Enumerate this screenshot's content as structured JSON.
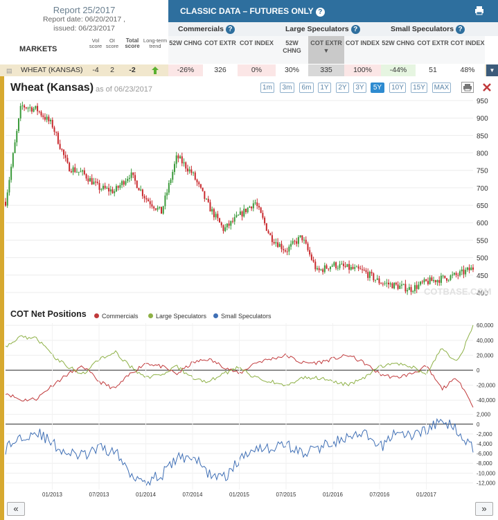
{
  "report": {
    "title": "Report 25/2017",
    "report_date": "Report date: 06/20/2017 ,",
    "issued": "issued: 06/23/2017"
  },
  "table": {
    "classic_title": "CLASSIC DATA – FUTURES ONLY",
    "markets_label": "MARKETS",
    "vol_score": "Vol score",
    "oi_score": "OI score",
    "total_score": "Total score",
    "long_term_trend": "Long-term trend",
    "groups": [
      "Commercials",
      "Large Speculators",
      "Small Speculators"
    ],
    "col_heads": [
      "52W CHNG",
      "COT EXTR",
      "COT INDEX",
      "52W CHNG",
      "COT EXTR",
      "COT INDEX",
      "52W CHNG",
      "COT EXTR",
      "COT INDEX"
    ],
    "row": {
      "market": "WHEAT (KANSAS)",
      "vol": "-4",
      "oi": "2",
      "total": "-2",
      "values": [
        "-26%",
        "326",
        "0%",
        "30%",
        "335",
        "100%",
        "-44%",
        "51",
        "48%"
      ]
    }
  },
  "chart": {
    "title": "Wheat (Kansas)",
    "as_of": "as of 06/23/2017",
    "ranges": [
      "1m",
      "3m",
      "6m",
      "1Y",
      "2Y",
      "3Y",
      "5Y",
      "10Y",
      "15Y",
      "MAX"
    ],
    "active_range": "5Y",
    "watermark": "COTBASE.COM",
    "cot_title": "COT Net Positions",
    "legend": [
      "Commercials",
      "Large Speculators",
      "Small Speculators"
    ],
    "colors": {
      "commercials": "#c0393b",
      "large": "#8db045",
      "small": "#3f6fb5",
      "accent": "#2e6f9e",
      "bar_gold": "#e0b33a"
    }
  },
  "chart_data": [
    {
      "type": "line",
      "series_style": "candlestick",
      "title": "Wheat (Kansas)",
      "yticks": [
        400,
        450,
        500,
        550,
        600,
        650,
        700,
        750,
        800,
        850,
        900,
        950
      ],
      "ylim": [
        380,
        960
      ],
      "x": [
        "2012-07",
        "2012-09",
        "2012-11",
        "2013-01",
        "2013-03",
        "2013-05",
        "2013-07",
        "2013-09",
        "2013-11",
        "2014-01",
        "2014-03",
        "2014-05",
        "2014-07",
        "2014-09",
        "2014-11",
        "2015-01",
        "2015-03",
        "2015-05",
        "2015-07",
        "2015-09",
        "2015-11",
        "2016-01",
        "2016-03",
        "2016-05",
        "2016-07",
        "2016-09",
        "2016-11",
        "2017-01",
        "2017-03",
        "2017-05",
        "2017-06"
      ],
      "series": [
        {
          "values": [
            660,
            935,
            925,
            880,
            760,
            740,
            700,
            690,
            740,
            670,
            630,
            790,
            740,
            650,
            580,
            620,
            660,
            560,
            520,
            560,
            460,
            480,
            470,
            460,
            430,
            420,
            410,
            430,
            440,
            450,
            470
          ]
        }
      ]
    },
    {
      "type": "line",
      "title": "COT Net Positions",
      "yticks": [
        -40000,
        -20000,
        0,
        20000,
        40000,
        60000
      ],
      "ylim": [
        -50000,
        63000
      ],
      "x": [
        "2012-07",
        "2012-09",
        "2012-11",
        "2013-01",
        "2013-03",
        "2013-05",
        "2013-07",
        "2013-09",
        "2013-11",
        "2014-01",
        "2014-03",
        "2014-05",
        "2014-07",
        "2014-09",
        "2014-11",
        "2015-01",
        "2015-03",
        "2015-05",
        "2015-07",
        "2015-09",
        "2015-11",
        "2016-01",
        "2016-03",
        "2016-05",
        "2016-07",
        "2016-09",
        "2016-11",
        "2017-01",
        "2017-03",
        "2017-05",
        "2017-06"
      ],
      "series": [
        {
          "name": "Commercials",
          "values": [
            -30000,
            -40000,
            -38000,
            -20000,
            -5000,
            5000,
            -15000,
            -25000,
            -5000,
            10000,
            5000,
            -5000,
            10000,
            15000,
            5000,
            -5000,
            10000,
            15000,
            20000,
            10000,
            10000,
            15000,
            20000,
            10000,
            -5000,
            -10000,
            -5000,
            5000,
            -25000,
            -10000,
            -48000
          ]
        },
        {
          "name": "Large Speculators",
          "values": [
            30000,
            45000,
            42000,
            20000,
            5000,
            -5000,
            15000,
            25000,
            5000,
            -10000,
            -5000,
            5000,
            -10000,
            -15000,
            -5000,
            5000,
            -10000,
            -15000,
            -20000,
            -10000,
            -10000,
            -15000,
            -20000,
            -10000,
            5000,
            10000,
            5000,
            -5000,
            30000,
            10000,
            58000
          ]
        }
      ]
    },
    {
      "type": "line",
      "yticks": [
        -12000,
        -10000,
        -8000,
        -6000,
        -4000,
        -2000,
        0,
        2000
      ],
      "ylim": [
        -12500,
        2800
      ],
      "x": [
        "2012-07",
        "2012-09",
        "2012-11",
        "2013-01",
        "2013-03",
        "2013-05",
        "2013-07",
        "2013-09",
        "2013-11",
        "2014-01",
        "2014-03",
        "2014-05",
        "2014-07",
        "2014-09",
        "2014-11",
        "2015-01",
        "2015-03",
        "2015-05",
        "2015-07",
        "2015-09",
        "2015-11",
        "2016-01",
        "2016-03",
        "2016-05",
        "2016-07",
        "2016-09",
        "2016-11",
        "2017-01",
        "2017-03",
        "2017-05",
        "2017-06"
      ],
      "series": [
        {
          "name": "Small Speculators",
          "values": [
            -5000,
            -2500,
            -1500,
            -4000,
            -6000,
            -6500,
            -5000,
            -5500,
            -10000,
            -11500,
            -10500,
            -7000,
            -6500,
            -10000,
            -11000,
            -7500,
            -4500,
            -5000,
            -4000,
            -6000,
            -5000,
            -3500,
            -3000,
            -2000,
            -5000,
            -1500,
            -2500,
            -1000,
            500,
            -1000,
            -5200
          ]
        }
      ]
    }
  ],
  "x_axis_labels": [
    "01/2013",
    "07/2013",
    "01/2014",
    "07/2014",
    "01/2015",
    "07/2015",
    "01/2016",
    "07/2016",
    "01/2017"
  ],
  "nav": {
    "prev": "«",
    "next": "»"
  }
}
